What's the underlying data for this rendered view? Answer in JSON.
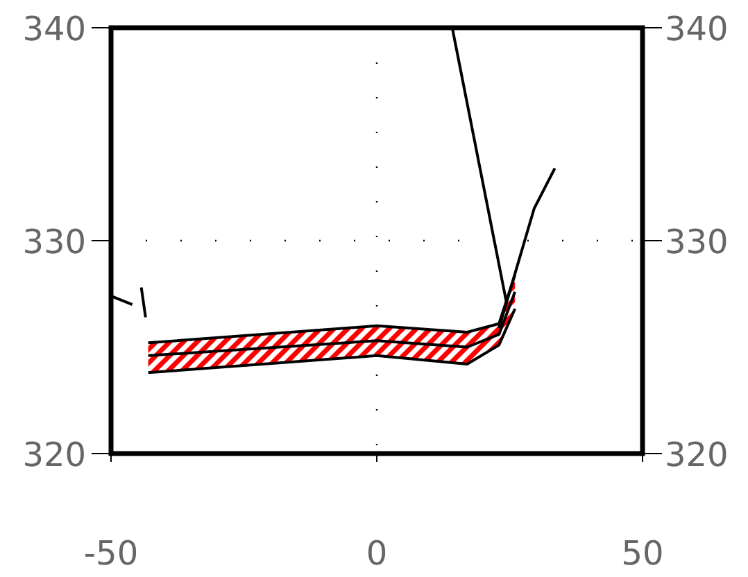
{
  "chart_data": {
    "type": "line",
    "xlim": [
      -50,
      50
    ],
    "xticks": [
      -50,
      0,
      50
    ],
    "ylim": [
      320,
      340
    ],
    "yticks": [
      320,
      330,
      340
    ],
    "y2lim": [
      320,
      340
    ],
    "y2ticks": [
      320,
      330,
      340
    ],
    "grid": true,
    "marker": "none",
    "line_style": "solid",
    "series": [
      {
        "color": "#000000",
        "x": [
          -43,
          0,
          17,
          23,
          26
        ],
        "values": [
          324.6,
          325.3,
          325,
          325.6,
          327.6
        ],
        "lower": [
          323.8,
          324.6,
          324.2,
          325.1,
          326.8
        ],
        "upper": [
          325.2,
          326,
          325.7,
          326.1,
          328.4
        ]
      },
      {
        "color": "#000000",
        "x": [
          -43,
          0,
          17,
          23,
          26
        ],
        "values": [
          325.2,
          326,
          325.7,
          326.1,
          328.4
        ]
      },
      {
        "color": "#000000",
        "x": [
          -43,
          0,
          17,
          23,
          26
        ],
        "values": [
          323.8,
          324.6,
          324.2,
          325.1,
          326.8
        ]
      },
      {
        "color": "#000000",
        "x": [
          14.2,
          24.4
        ],
        "values": [
          340,
          327.1
        ]
      },
      {
        "color": "#000000",
        "x": [
          23,
          29.6,
          33.5
        ],
        "values": [
          325.9,
          331.5,
          333.4
        ]
      },
      {
        "color": "#000000",
        "x": [
          -50,
          -46
        ],
        "values": [
          327.4,
          327
        ]
      },
      {
        "color": "#000000",
        "x": [
          -44.3,
          -43.5
        ],
        "values": [
          327.8,
          326.4
        ]
      }
    ]
  }
}
